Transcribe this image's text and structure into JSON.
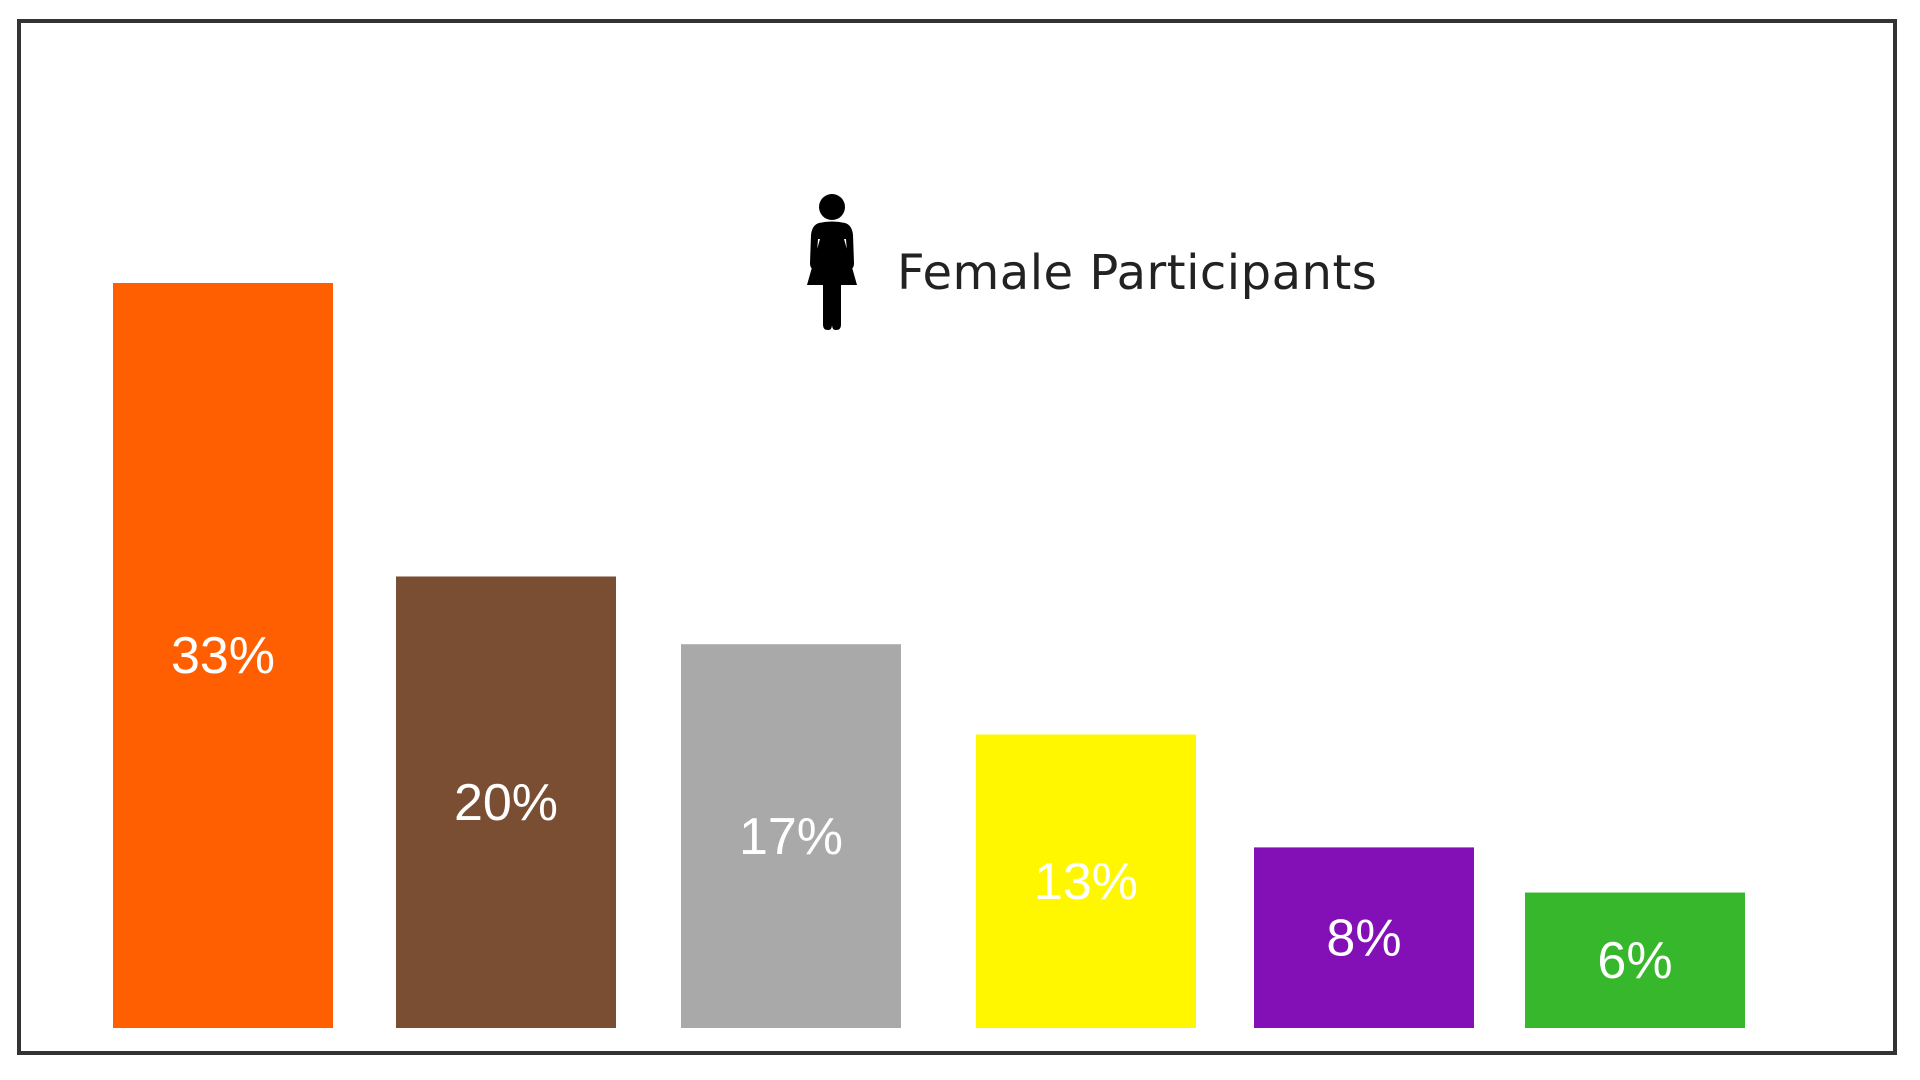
{
  "chart_data": {
    "type": "bar",
    "legend": {
      "label": "Female Participants",
      "icon": "female-person-icon",
      "placement": "top-center"
    },
    "values": [
      33,
      20,
      17,
      13,
      8,
      6
    ],
    "value_labels": [
      "33%",
      "20%",
      "17%",
      "13%",
      "8%",
      "6%"
    ],
    "colors": [
      "#ff5f00",
      "#7a4e32",
      "#a9a9a9",
      "#fff700",
      "#830fb7",
      "#37b72b"
    ],
    "ylim": [
      0,
      33
    ],
    "grid": false
  }
}
